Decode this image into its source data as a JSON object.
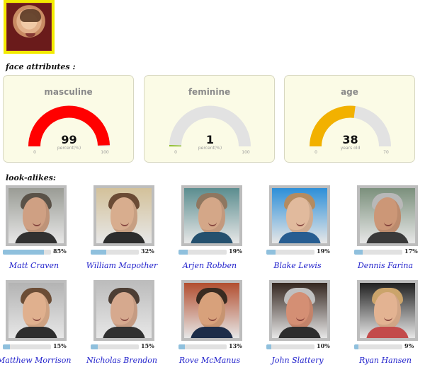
{
  "headings": {
    "face_attributes": "face attributes :",
    "look_alikes": "look-alikes:"
  },
  "input_photo": {
    "frame_color": "#f2ea00"
  },
  "attributes": [
    {
      "title": "masculine",
      "value": "99",
      "unit": "percent(%)",
      "min": "0",
      "max": "100",
      "fraction": 0.99,
      "color": "#ff0000"
    },
    {
      "title": "feminine",
      "value": "1",
      "unit": "percent(%)",
      "min": "0",
      "max": "100",
      "fraction": 0.01,
      "color": "#79b500"
    },
    {
      "title": "age",
      "value": "38",
      "unit": "years old",
      "min": "0",
      "max": "70",
      "fraction": 0.54,
      "color": "#f2b100"
    }
  ],
  "lookalikes": [
    {
      "name": "Matt Craven",
      "percent": "85%",
      "match": 0.85,
      "skin": "#cfa083",
      "hair": "#5a5248",
      "shirt": "#313131",
      "bg": "#9a9c95"
    },
    {
      "name": "William Mapother",
      "percent": "32%",
      "match": 0.32,
      "skin": "#d8ad8e",
      "hair": "#6b4b35",
      "shirt": "#2d2d2d",
      "bg": "#d3c19a"
    },
    {
      "name": "Arjen Robben",
      "percent": "19%",
      "match": 0.19,
      "skin": "#d4a788",
      "hair": "#8f7760",
      "shirt": "#24506e",
      "bg": "#5b8d8f"
    },
    {
      "name": "Blake Lewis",
      "percent": "19%",
      "match": 0.19,
      "skin": "#e1ba9d",
      "hair": "#b48b60",
      "shirt": "#275d91",
      "bg": "#2d8fd8"
    },
    {
      "name": "Dennis Farina",
      "percent": "17%",
      "match": 0.17,
      "skin": "#cc9777",
      "hair": "#b8b8b8",
      "shirt": "#3a3a3a",
      "bg": "#7b907c"
    },
    {
      "name": "Matthew Morrison",
      "percent": "15%",
      "match": 0.15,
      "skin": "#e0b08e",
      "hair": "#6c4d36",
      "shirt": "#2e2e2e",
      "bg": "#b3b3b3"
    },
    {
      "name": "Nicholas Brendon",
      "percent": "15%",
      "match": 0.15,
      "skin": "#d6a98e",
      "hair": "#4d3e34",
      "shirt": "#313131",
      "bg": "#bdbdbd"
    },
    {
      "name": "Rove McManus",
      "percent": "13%",
      "match": 0.13,
      "skin": "#d8a17b",
      "hair": "#3a2b21",
      "shirt": "#1d2d49",
      "bg": "#b24e2f"
    },
    {
      "name": "John Slattery",
      "percent": "10%",
      "match": 0.1,
      "skin": "#d48f74",
      "hair": "#c0c0c0",
      "shirt": "#2d2d2d",
      "bg": "#34261f"
    },
    {
      "name": "Ryan Hansen",
      "percent": "9%",
      "match": 0.09,
      "skin": "#e3b392",
      "hair": "#cba46b",
      "shirt": "#c34b4b",
      "bg": "#202020"
    }
  ]
}
